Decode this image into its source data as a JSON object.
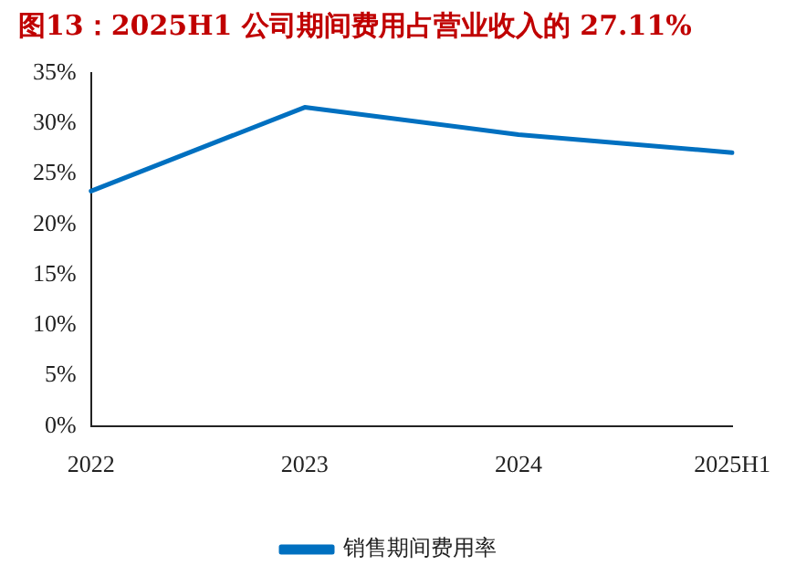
{
  "chart_data": {
    "type": "line",
    "title": "图13：2025H1 公司期间费用占营业收入的 27.11%",
    "categories": [
      "2022",
      "2023",
      "2024",
      "2025H1"
    ],
    "series": [
      {
        "name": "销售期间费用率",
        "color": "#0070c0",
        "values": [
          23.3,
          31.6,
          28.9,
          27.11
        ]
      }
    ],
    "ylim": [
      0,
      35
    ],
    "yticks": [
      {
        "value": 0,
        "label": "0%"
      },
      {
        "value": 5,
        "label": "5%"
      },
      {
        "value": 10,
        "label": "10%"
      },
      {
        "value": 15,
        "label": "15%"
      },
      {
        "value": 20,
        "label": "20%"
      },
      {
        "value": 25,
        "label": "25%"
      },
      {
        "value": 30,
        "label": "30%"
      },
      {
        "value": 35,
        "label": "35%"
      }
    ],
    "grid": false,
    "legend": "bottom",
    "marker": "none",
    "line_style": "solid"
  }
}
